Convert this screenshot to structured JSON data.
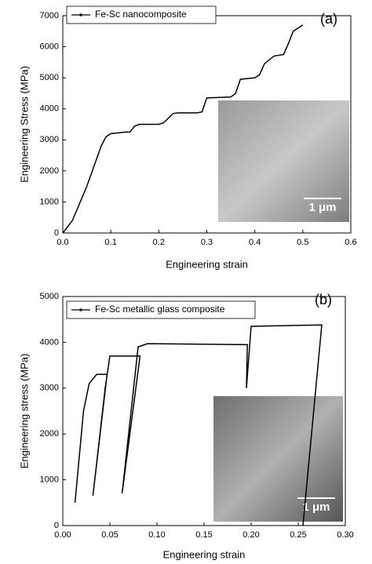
{
  "chart_data": [
    {
      "type": "line",
      "panel_label": "(a)",
      "xlabel": "Engineering strain",
      "ylabel": "Engineering Stress (MPa)",
      "inset_scale": "1 μm",
      "legend": "upper left",
      "x": [
        0,
        0.02,
        0.05,
        0.08,
        0.09,
        0.1,
        0.13,
        0.14,
        0.15,
        0.16,
        0.2,
        0.21,
        0.23,
        0.24,
        0.28,
        0.29,
        0.3,
        0.35,
        0.36,
        0.37,
        0.4,
        0.41,
        0.42,
        0.44,
        0.46,
        0.47,
        0.48,
        0.5
      ],
      "series": [
        {
          "name": "Fe-Sc nanocomposite",
          "color": "#000000",
          "values": [
            0,
            400,
            1500,
            2800,
            3100,
            3200,
            3250,
            3250,
            3450,
            3500,
            3500,
            3550,
            3850,
            3870,
            3870,
            3900,
            4350,
            4380,
            4500,
            4950,
            5000,
            5100,
            5450,
            5700,
            5750,
            6100,
            6500,
            6700
          ]
        }
      ],
      "xlim": [
        0,
        0.6
      ],
      "xticks": [
        {
          "value": 0,
          "label": "0.0"
        },
        0.1,
        0.2,
        0.3,
        0.4,
        0.5,
        0.6
      ],
      "ylim": [
        0,
        7000
      ],
      "yticks": [
        0,
        1000,
        2000,
        3000,
        4000,
        5000,
        6000,
        7000
      ],
      "grid": false
    },
    {
      "type": "line",
      "panel_label": "(b)",
      "xlabel": "Engineering strain",
      "ylabel": "Engineering stress (MPa)",
      "inset_scale": "1 μm",
      "legend": "upper left",
      "x": [
        0.013,
        0.022,
        0.028,
        0.036,
        0.047,
        0.032,
        0.045,
        0.05,
        0.082,
        0.063,
        0.08,
        0.09,
        0.196,
        0.195,
        0.2,
        0.275,
        0.255
      ],
      "series": [
        {
          "name": "Fe-Sc metallic glass composite",
          "color": "#000000",
          "values": [
            500,
            2500,
            3100,
            3300,
            3300,
            650,
            3000,
            3700,
            3700,
            700,
            3900,
            3970,
            3950,
            3000,
            4350,
            4380,
            0
          ]
        }
      ],
      "xlim": [
        0,
        0.3
      ],
      "xticks": [
        {
          "value": 0,
          "label": "0.00"
        },
        0.05,
        {
          "value": 0.1,
          "label": "0.10"
        },
        0.15,
        {
          "value": 0.2,
          "label": "0.20"
        },
        0.25,
        {
          "value": 0.3,
          "label": "0.30"
        }
      ],
      "ylim": [
        0,
        5000
      ],
      "yticks": [
        0,
        1000,
        2000,
        3000,
        4000,
        5000
      ],
      "grid": false
    }
  ]
}
